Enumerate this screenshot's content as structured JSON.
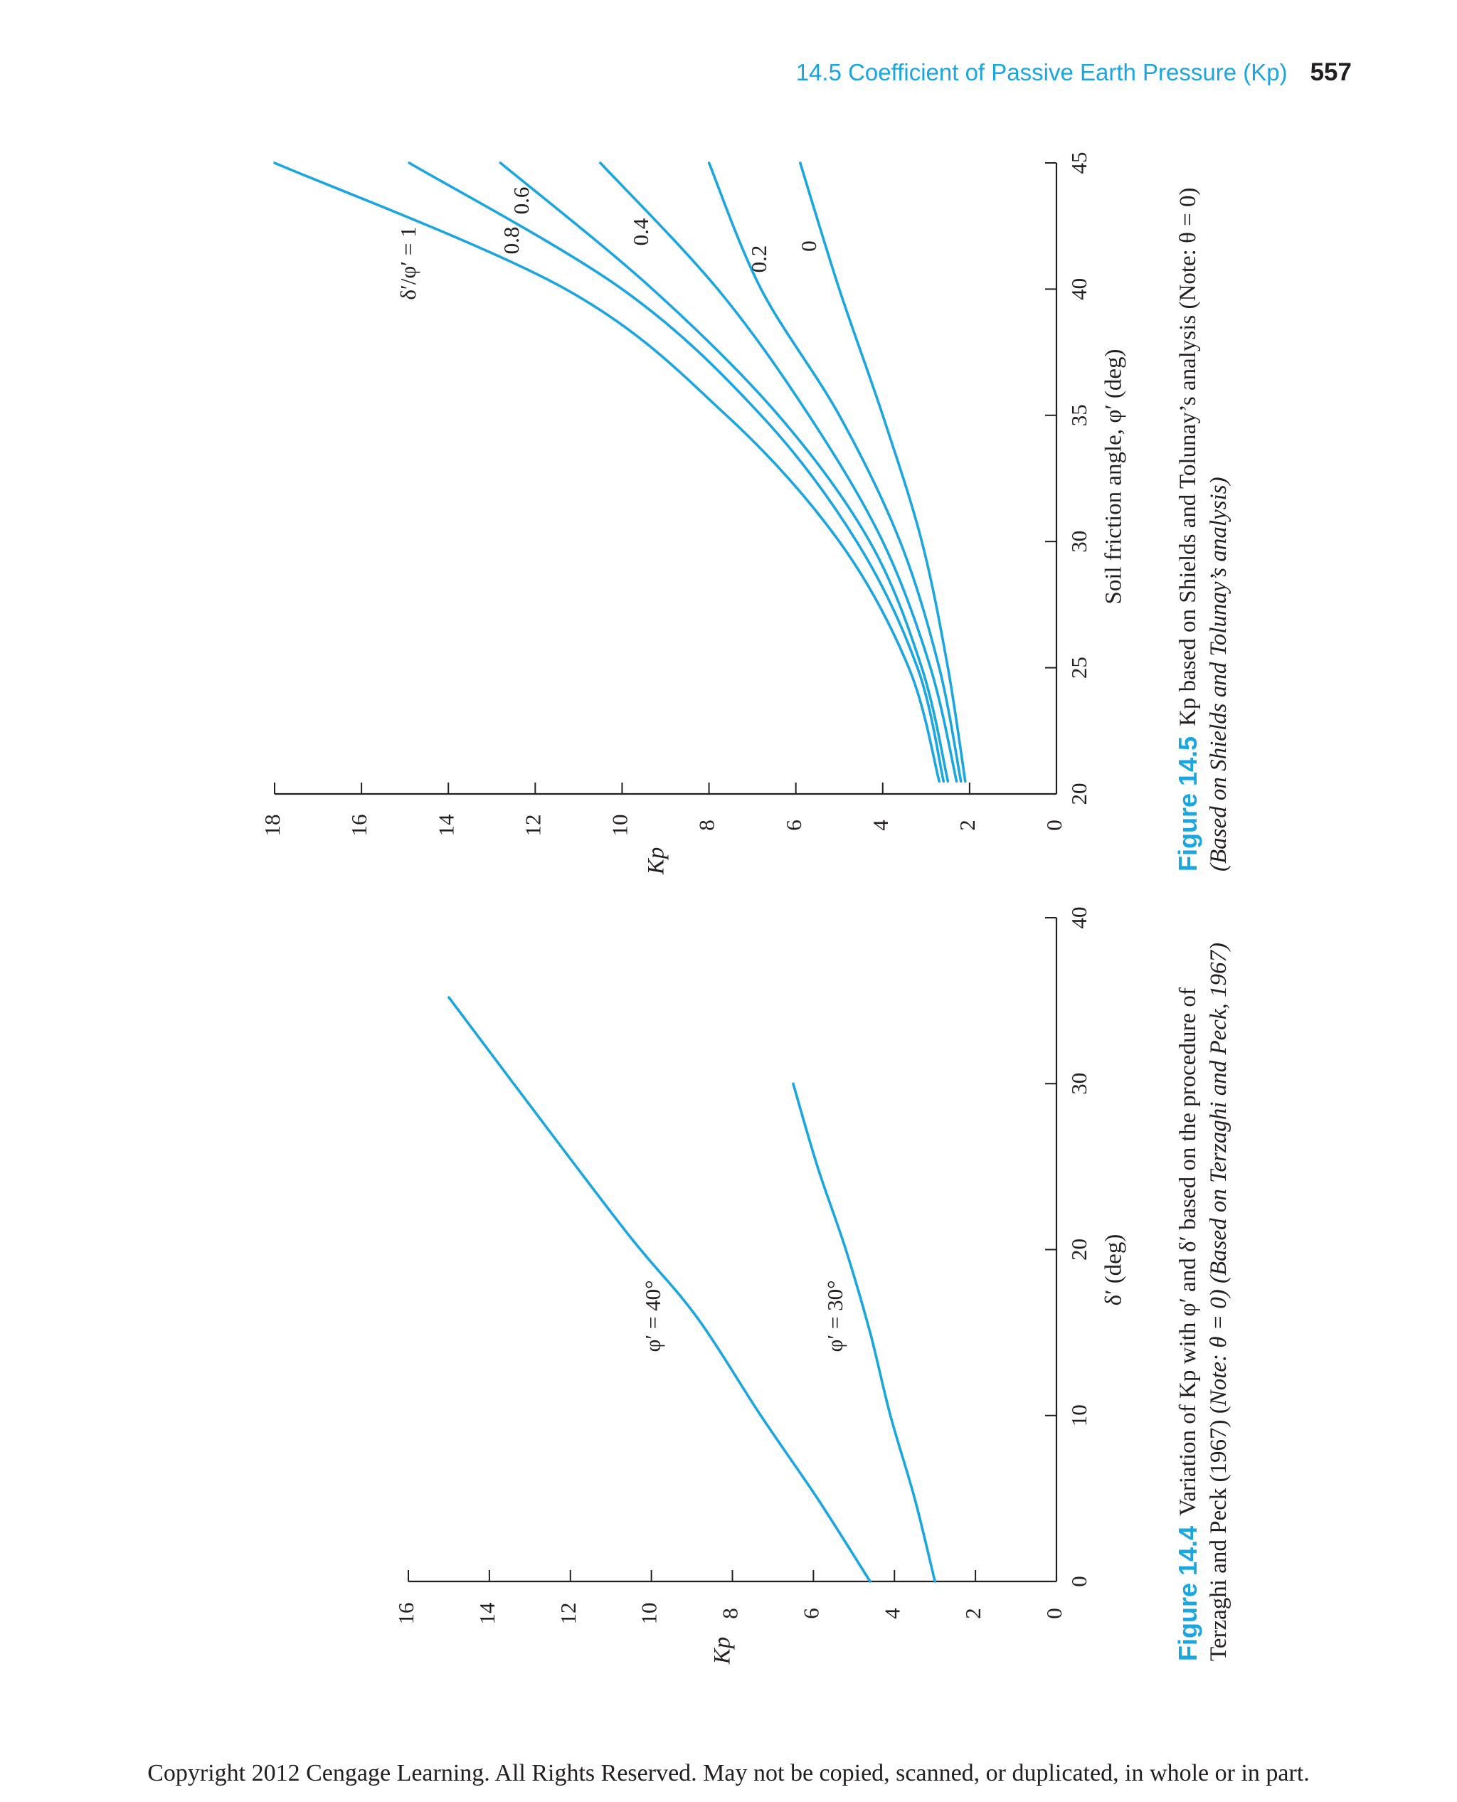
{
  "header": {
    "section": "14.5 Coefficient of Passive Earth Pressure (Kp)",
    "page_number": "557"
  },
  "colors": {
    "curve": "#1aa6e0",
    "axis": "#231f20",
    "caption_label": "#1aa6e0"
  },
  "chart_data": [
    {
      "id": "fig_14_4",
      "type": "line",
      "orientation": "page rotated 90° counter-clockwise",
      "xlabel": "δ′ (deg)",
      "ylabel": "Kp",
      "xlim": [
        0,
        40
      ],
      "ylim": [
        0,
        16
      ],
      "xticks": [
        0,
        10,
        20,
        30,
        40
      ],
      "yticks": [
        0,
        2,
        4,
        6,
        8,
        10,
        12,
        14,
        16
      ],
      "series": [
        {
          "name": "φ′ = 40°",
          "x": [
            0,
            5,
            10,
            16,
            21,
            30,
            35.2
          ],
          "y": [
            4.6,
            5.9,
            7.3,
            8.9,
            10.6,
            13.4,
            15.0
          ]
        },
        {
          "name": "φ′ = 30°",
          "x": [
            0,
            5,
            10,
            15,
            20,
            25,
            30
          ],
          "y": [
            3.0,
            3.5,
            4.1,
            4.6,
            5.2,
            5.9,
            6.5
          ]
        }
      ],
      "caption": {
        "label": "Figure 14.4",
        "line1": "Variation of Kp with φ′ and δ′ based on the procedure of",
        "line2_a": "Terzaghi and Peck (1967) (",
        "line2_note": "Note: θ = 0) (Based on Terzaghi and Peck, 1967)"
      }
    },
    {
      "id": "fig_14_5",
      "type": "line",
      "orientation": "page rotated 90° counter-clockwise",
      "xlabel": "Soil friction angle, φ′ (deg)",
      "ylabel": "Kp",
      "xlim": [
        20,
        45
      ],
      "ylim": [
        0,
        18
      ],
      "xticks": [
        20,
        25,
        30,
        35,
        40,
        45
      ],
      "yticks": [
        0,
        2,
        4,
        6,
        8,
        10,
        12,
        14,
        16,
        18
      ],
      "legend_title": "δ′/φ′ = 1",
      "series": [
        {
          "name": "1",
          "x": [
            20.5,
            25,
            30,
            35,
            40,
            45
          ],
          "y": [
            2.7,
            3.4,
            5.0,
            7.6,
            11.3,
            18.0
          ]
        },
        {
          "name": "0.8",
          "x": [
            20.5,
            25,
            30,
            35,
            40,
            45
          ],
          "y": [
            2.6,
            3.2,
            4.6,
            6.8,
            10.0,
            14.9
          ]
        },
        {
          "name": "0.6",
          "x": [
            20.5,
            25,
            30,
            35,
            40,
            45
          ],
          "y": [
            2.5,
            3.1,
            4.3,
            6.4,
            9.3,
            12.8
          ]
        },
        {
          "name": "0.4",
          "x": [
            20.5,
            25,
            30,
            35,
            40,
            45
          ],
          "y": [
            2.3,
            2.9,
            4.0,
            5.7,
            7.8,
            10.5
          ]
        },
        {
          "name": "0.2",
          "x": [
            20.5,
            25,
            30,
            35,
            40,
            45
          ],
          "y": [
            2.2,
            2.7,
            3.6,
            5.0,
            6.8,
            8.0
          ]
        },
        {
          "name": "0",
          "x": [
            20.5,
            25,
            30,
            35,
            40,
            45
          ],
          "y": [
            2.1,
            2.5,
            3.1,
            4.0,
            5.0,
            5.9
          ]
        }
      ],
      "caption": {
        "label": "Figure 14.5",
        "line1": "Kp based on Shields and Tolunay’s analysis (Note: θ = 0)",
        "line2": "(Based on Shields and Tolunay’s analysis)"
      }
    }
  ],
  "copyright": "Copyright 2012 Cengage Learning. All Rights Reserved. May not be copied, scanned, or duplicated, in whole or in part."
}
